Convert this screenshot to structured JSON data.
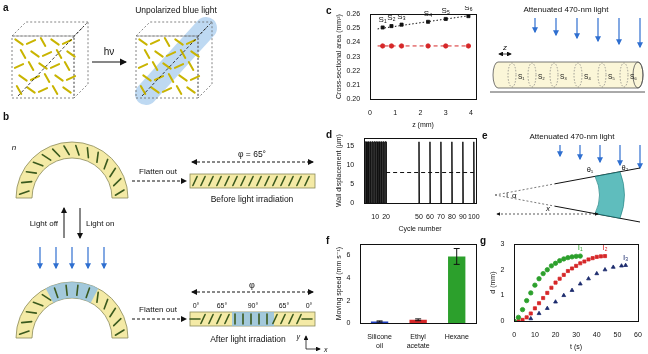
{
  "diagrams": {
    "a": {
      "label": "a",
      "arrow_text": "hν",
      "light_text": "Unpolarized blue light"
    },
    "b": {
      "label": "b",
      "director": "n",
      "flatten_text": "Flatten out",
      "light_off": "Light off",
      "light_on": "Light on",
      "before_text": "Before light irradiation",
      "after_text": "After light irradiation",
      "phi_before": "φ = 65°",
      "phi_after": "φ",
      "angle_labels": [
        "0°",
        "65°",
        "90°",
        "65°",
        "0°"
      ],
      "axis_x": "x",
      "axis_y": "y"
    },
    "c_right": {
      "light_text": "Attenuated 470-nm light",
      "length_label": "z",
      "sections": [
        "S₁",
        "S₂",
        "S₃",
        "S₄",
        "S₅",
        "S₆"
      ]
    },
    "e": {
      "label": "e",
      "light_text": "Attenuated 470-nm light",
      "apex_angle": "α",
      "contact_angles": [
        "θ₁",
        "θ₂"
      ],
      "position_label": "x"
    }
  },
  "chart_data": [
    {
      "panel": "c",
      "type": "scatter",
      "x_label": "z (mm)",
      "y_label": "Cross-sectional area (mm²)",
      "xlim": [
        0,
        4.2
      ],
      "xticks": [
        0,
        1,
        2,
        3,
        4
      ],
      "ylim": [
        0.2,
        0.26
      ],
      "yticks": [
        {
          "value": 0.2,
          "label": "0.20"
        },
        0.21,
        0.22,
        0.23,
        0.24,
        0.25,
        0.26
      ],
      "grid": false,
      "series": [
        {
          "color": "#111111",
          "marker": "square",
          "line_style": "none",
          "x": [
            0.5,
            0.85,
            1.25,
            2.3,
            3.0,
            3.9
          ],
          "values": [
            0.2505,
            0.2515,
            0.2525,
            0.2545,
            0.2565,
            0.2585
          ],
          "point_labels": [
            "S₁",
            "S₂",
            "S₃",
            "S₄",
            "S₅",
            "S₆"
          ]
        },
        {
          "color": "#111111",
          "marker": "none",
          "line_style": "dotted",
          "x": [
            0.3,
            4.0
          ],
          "values": [
            0.2495,
            0.259
          ]
        },
        {
          "color": "#d62728",
          "marker": "circle",
          "line_style": "none",
          "x": [
            0.5,
            0.85,
            1.25,
            2.3,
            3.0,
            3.9
          ],
          "values": [
            0.2375,
            0.2375,
            0.2375,
            0.2375,
            0.2375,
            0.2375
          ]
        },
        {
          "color": "#d62728",
          "marker": "none",
          "line_style": "dashed",
          "x": [
            0.3,
            4.0
          ],
          "values": [
            0.2375,
            0.2375
          ]
        }
      ]
    },
    {
      "panel": "d",
      "type": "line",
      "x_label": "Cycle number",
      "y_label": "Wall displacement (μm)",
      "xlim": [
        0,
        102
      ],
      "xticks": [
        10,
        20,
        50,
        60,
        70,
        80,
        90,
        100
      ],
      "ylim": [
        0,
        17
      ],
      "yticks": [
        0,
        5,
        10,
        15
      ],
      "grid": false,
      "series": [
        {
          "color": "#111111",
          "marker": "none",
          "line_style": "solid",
          "x": [
            1,
            1,
            2,
            2,
            3,
            3,
            4,
            4,
            5,
            5,
            6,
            6,
            7,
            7,
            8,
            8,
            9,
            9,
            10,
            10,
            11,
            11,
            12,
            12,
            13,
            13,
            14,
            14,
            15,
            15,
            16,
            16,
            17,
            17,
            18,
            18,
            19,
            19,
            20,
            20,
            null,
            49.6,
            50,
            50.4,
            null,
            59.6,
            60,
            60.4,
            null,
            69.6,
            70,
            70.4,
            null,
            79.6,
            80,
            80.4,
            null,
            89.6,
            90,
            90.4,
            null,
            99.6,
            100,
            100.4
          ],
          "values": [
            0,
            16,
            16,
            0,
            0,
            16,
            16,
            0,
            0,
            16,
            16,
            0,
            0,
            16,
            16,
            0,
            0,
            16,
            16,
            0,
            0,
            16,
            16,
            0,
            0,
            16,
            16,
            0,
            0,
            16,
            16,
            0,
            0,
            16,
            16,
            0,
            0,
            16,
            16,
            0,
            null,
            0,
            16,
            0,
            null,
            0,
            16,
            0,
            null,
            0,
            16,
            0,
            null,
            0,
            16,
            0,
            null,
            0,
            16,
            0,
            null,
            0,
            16,
            0
          ]
        },
        {
          "color": "#111111",
          "marker": "none",
          "line_style": "dashed",
          "x": [
            20,
            100
          ],
          "values": [
            8,
            8
          ]
        }
      ]
    },
    {
      "panel": "f",
      "type": "bar",
      "y_label": "Moving speed (mm s⁻¹)",
      "categories": [
        "Silicone oil",
        "Ethyl acetate",
        "Hexane"
      ],
      "values": [
        0.15,
        0.3,
        5.9
      ],
      "errors": [
        0.05,
        0.08,
        0.7
      ],
      "colors": [
        "#1f3fbf",
        "#d62728",
        "#2ca02c"
      ],
      "ylim": [
        0,
        7
      ],
      "yticks": [
        0,
        2,
        4,
        6
      ],
      "grid": false
    },
    {
      "panel": "g",
      "type": "scatter",
      "x_label": "t (s)",
      "y_label": "d (mm)",
      "xlim": [
        0,
        60
      ],
      "xticks": [
        0,
        10,
        20,
        30,
        40,
        50,
        60
      ],
      "ylim": [
        0,
        3
      ],
      "yticks": [
        0,
        1,
        2,
        3
      ],
      "grid": false,
      "series": [
        {
          "name": "I₁",
          "color": "#2ca02c",
          "marker": "circle",
          "line_style": "none",
          "x": [
            0,
            2,
            4,
            6,
            8,
            10,
            12,
            14,
            16,
            18,
            20,
            22,
            24,
            26,
            28,
            30,
            32
          ],
          "values": [
            0,
            0.15,
            0.45,
            0.8,
            1.1,
            1.4,
            1.65,
            1.85,
            2.0,
            2.15,
            2.25,
            2.35,
            2.42,
            2.47,
            2.5,
            2.52,
            2.53
          ]
        },
        {
          "name": "I₂",
          "color": "#d62728",
          "marker": "square",
          "line_style": "none",
          "x": [
            2,
            4,
            6,
            8,
            10,
            12,
            14,
            16,
            18,
            20,
            22,
            24,
            26,
            28,
            30,
            32,
            34,
            36,
            38,
            40,
            42,
            44
          ],
          "values": [
            0,
            0.05,
            0.15,
            0.3,
            0.5,
            0.7,
            0.9,
            1.1,
            1.3,
            1.5,
            1.65,
            1.8,
            1.95,
            2.05,
            2.15,
            2.25,
            2.32,
            2.4,
            2.45,
            2.5,
            2.52,
            2.53
          ]
        },
        {
          "name": "I₃",
          "color": "#1a2a6c",
          "marker": "triangle",
          "line_style": "none",
          "x": [
            4,
            8,
            12,
            16,
            20,
            24,
            28,
            32,
            36,
            40,
            44,
            48,
            52,
            54
          ],
          "values": [
            0,
            0.1,
            0.3,
            0.5,
            0.75,
            1.0,
            1.2,
            1.45,
            1.65,
            1.85,
            2.0,
            2.1,
            2.15,
            2.17
          ]
        }
      ]
    }
  ]
}
